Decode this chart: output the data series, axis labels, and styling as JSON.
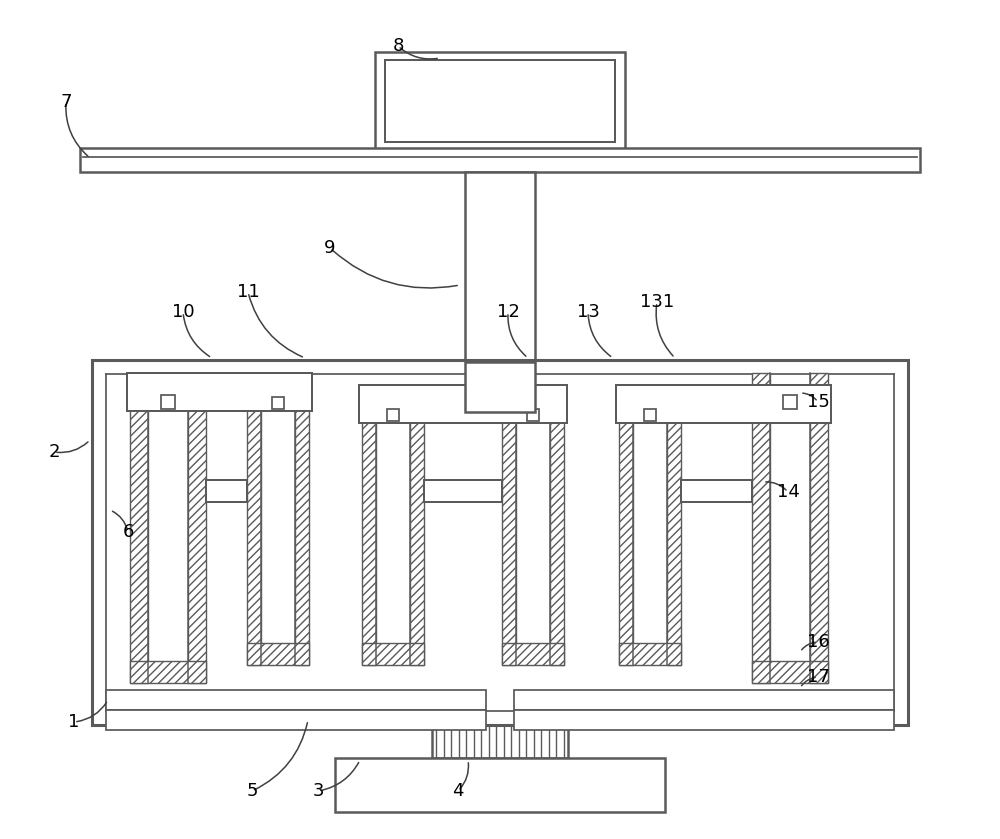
{
  "bg_color": "#ffffff",
  "line_color": "#5a5a5a",
  "fig_width": 10.0,
  "fig_height": 8.39
}
